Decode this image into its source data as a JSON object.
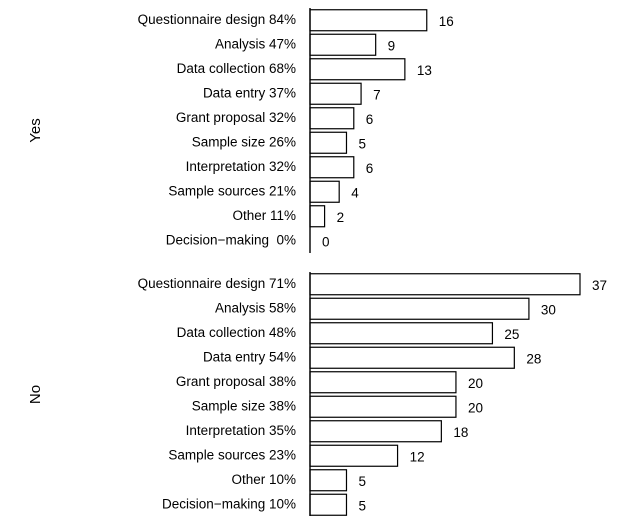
{
  "chart_data": [
    {
      "type": "bar",
      "y_label": "Yes",
      "categories": [
        "Questionnaire design 84%",
        "Analysis 47%",
        "Data collection 68%",
        "Data entry 37%",
        "Grant proposal 32%",
        "Sample size 26%",
        "Interpretation 32%",
        "Sample sources 21%",
        "Other 11%",
        "Decision−making  0%"
      ],
      "values": [
        16,
        9,
        13,
        7,
        6,
        5,
        6,
        4,
        2,
        0
      ],
      "color": "#ffffff"
    },
    {
      "type": "bar",
      "y_label": "No",
      "categories": [
        "Questionnaire design 71%",
        "Analysis 58%",
        "Data collection 48%",
        "Data entry 54%",
        "Grant proposal 38%",
        "Sample size 38%",
        "Interpretation 35%",
        "Sample sources 23%",
        "Other 10%",
        "Decision−making 10%"
      ],
      "values": [
        37,
        30,
        25,
        28,
        20,
        20,
        18,
        12,
        5,
        5
      ],
      "color": "#ffffff"
    }
  ]
}
